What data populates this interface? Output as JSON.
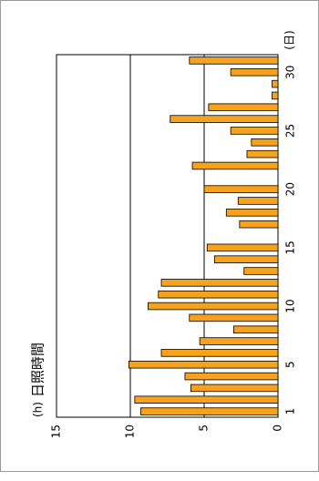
{
  "chart_data": {
    "type": "bar",
    "title": "日照時間",
    "y_label": "(h)",
    "x_label": "(日)",
    "categories": [
      "1",
      null,
      null,
      null,
      "5",
      null,
      null,
      null,
      null,
      "10",
      null,
      null,
      null,
      null,
      "15",
      null,
      null,
      null,
      null,
      "20",
      null,
      null,
      null,
      null,
      "25",
      null,
      null,
      null,
      null,
      "30",
      null
    ],
    "values": [
      9.3,
      9.7,
      5.9,
      6.3,
      10.1,
      7.9,
      5.3,
      3.0,
      6.0,
      8.8,
      8.1,
      7.9,
      2.3,
      4.3,
      4.8,
      0,
      2.6,
      3.5,
      2.7,
      5.0,
      0,
      5.8,
      2.1,
      1.8,
      3.2,
      7.3,
      4.7,
      0.4,
      0.4,
      3.2,
      6.0
    ],
    "color": "#f5a21e",
    "ylim": [
      0,
      15
    ],
    "yticks": [
      0,
      5,
      10,
      15
    ],
    "grid": true
  }
}
